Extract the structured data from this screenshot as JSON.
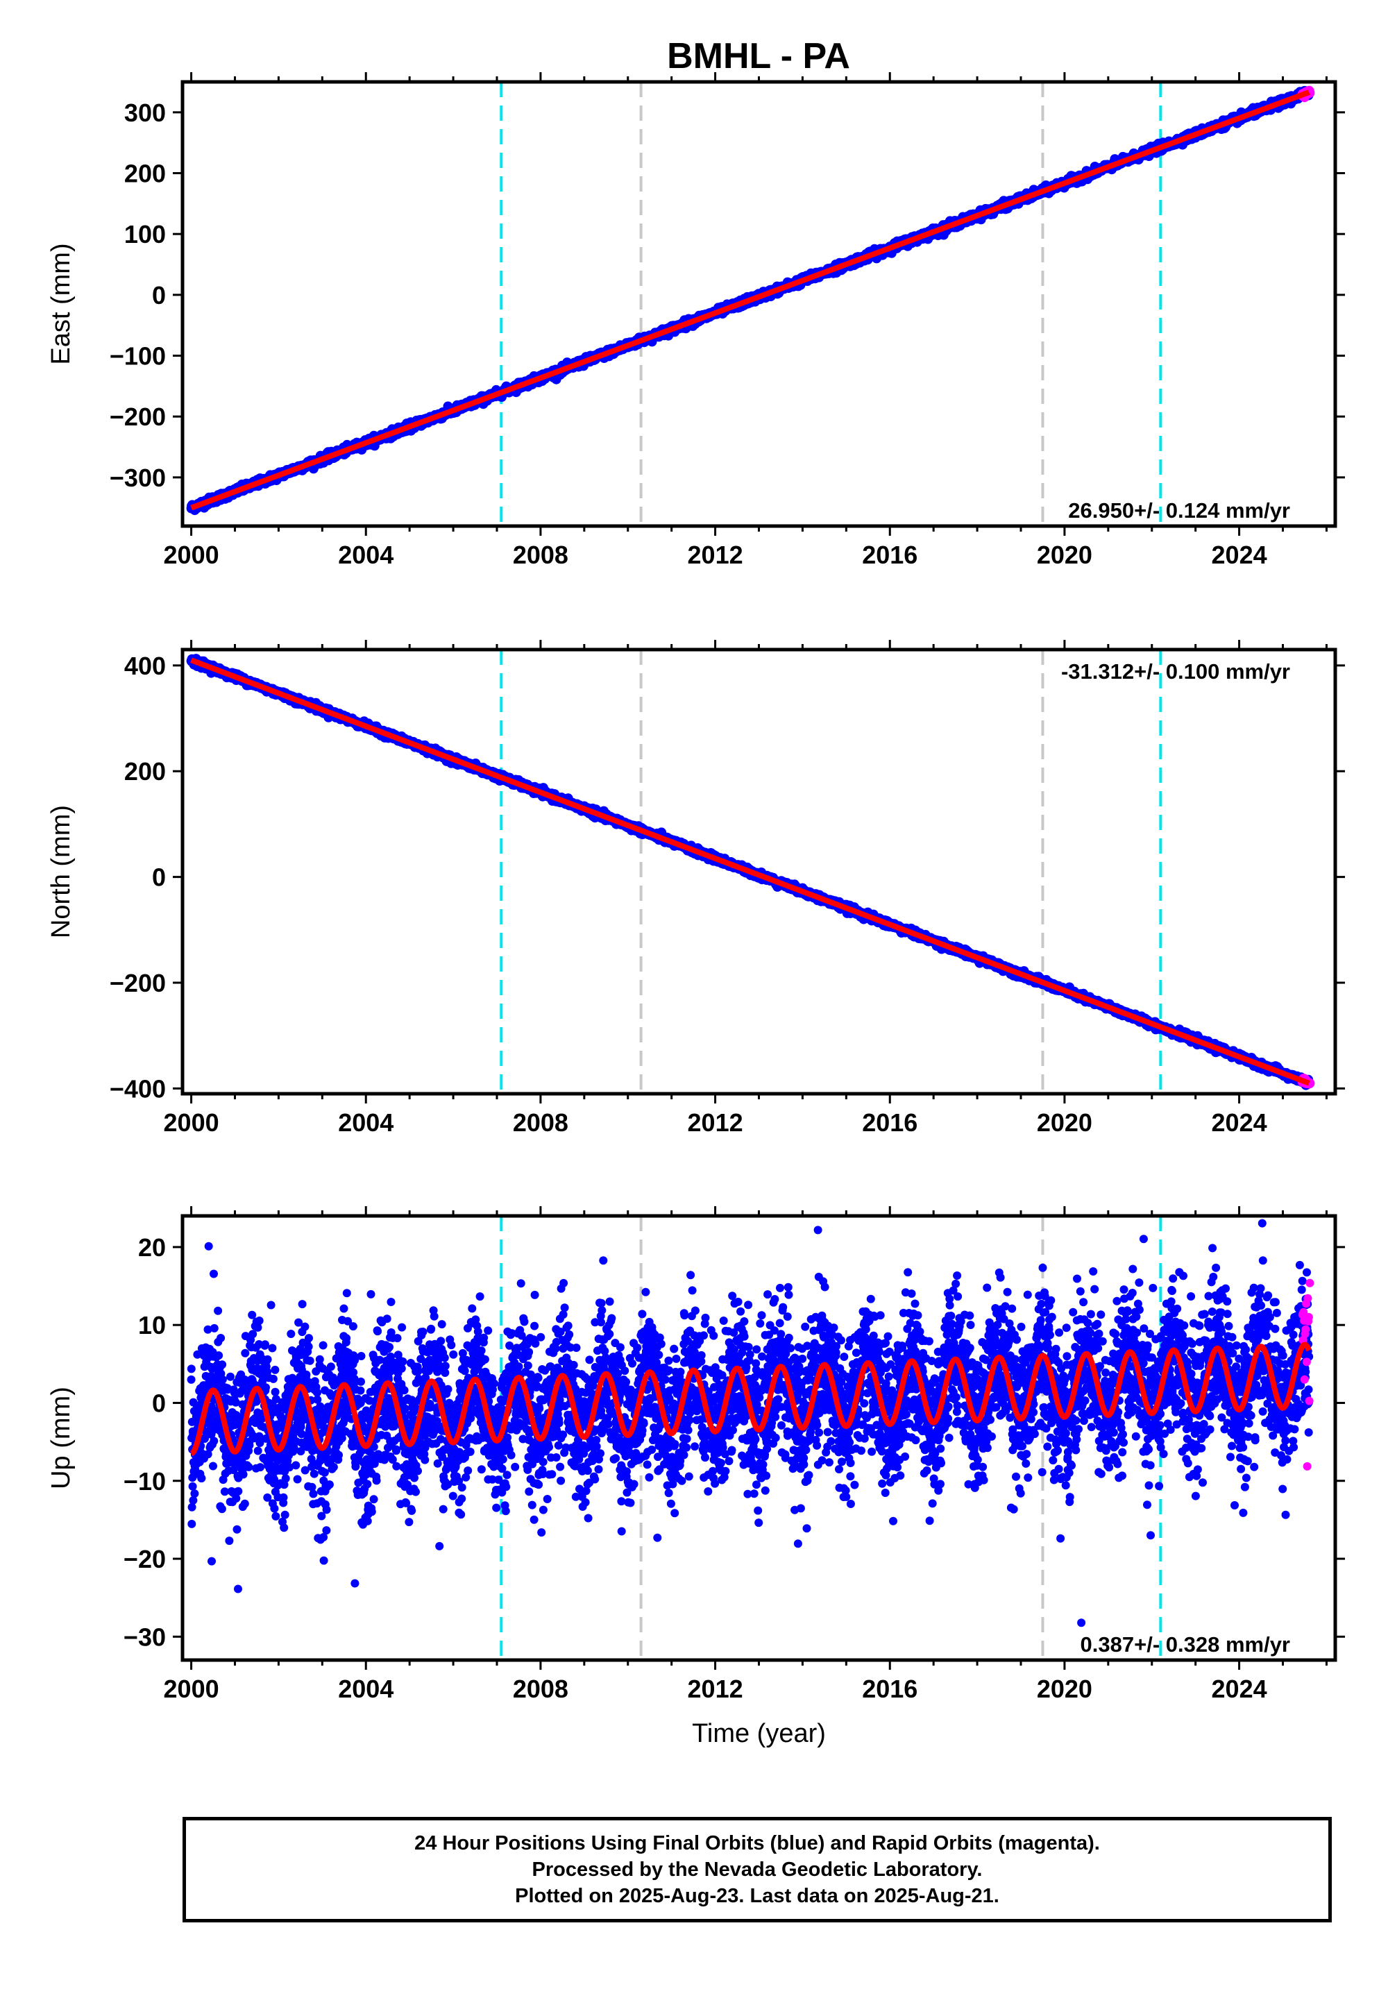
{
  "title": "BMHL - PA",
  "colors": {
    "final_orbits": "#0000ff",
    "rapid_orbits": "#ff00ff",
    "model": "#ff0000",
    "event_cyan": "#00e5ee",
    "event_gray": "#c8c8c8"
  },
  "event_lines": [
    {
      "year": 2007.1,
      "color": "cyan"
    },
    {
      "year": 2010.3,
      "color": "gray"
    },
    {
      "year": 2019.5,
      "color": "gray"
    },
    {
      "year": 2022.2,
      "color": "cyan"
    }
  ],
  "chart_data": [
    {
      "type": "scatter",
      "id": "east",
      "ylabel": "East (mm)",
      "xlabel": "",
      "xlim": [
        1999.8,
        2026.2
      ],
      "ylim": [
        -380,
        350
      ],
      "xticks": [
        2000,
        2004,
        2008,
        2012,
        2016,
        2020,
        2024
      ],
      "xtick_labels": [
        "2000",
        "2004",
        "2008",
        "2012",
        "2016",
        "2020",
        "2024"
      ],
      "yticks": [
        -300,
        -200,
        -100,
        0,
        100,
        200,
        300
      ],
      "ytick_labels": [
        "−300",
        "−200",
        "−100",
        "0",
        "100",
        "200",
        "300"
      ],
      "rate_text": "26.950+/- 0.124 mm/yr",
      "rate_position": "bottom-right",
      "trend": {
        "start_year": 2000.0,
        "start_value": -350,
        "end_year": 2025.6,
        "end_value": 333
      },
      "series": [
        {
          "name": "Final Orbits",
          "color": "blue",
          "x_range": [
            2000.0,
            2025.6
          ],
          "noise_mm": 3
        },
        {
          "name": "Rapid Orbits",
          "color": "magenta",
          "x_range": [
            2025.45,
            2025.62
          ],
          "noise_mm": 3
        }
      ]
    },
    {
      "type": "scatter",
      "id": "north",
      "ylabel": "North (mm)",
      "xlabel": "",
      "xlim": [
        1999.8,
        2026.2
      ],
      "ylim": [
        -410,
        430
      ],
      "xticks": [
        2000,
        2004,
        2008,
        2012,
        2016,
        2020,
        2024
      ],
      "xtick_labels": [
        "2000",
        "2004",
        "2008",
        "2012",
        "2016",
        "2020",
        "2024"
      ],
      "yticks": [
        -400,
        -200,
        0,
        200,
        400
      ],
      "ytick_labels": [
        "−400",
        "−200",
        "0",
        "200",
        "400"
      ],
      "rate_text": "-31.312+/- 0.100 mm/yr",
      "rate_position": "top-right",
      "trend": {
        "start_year": 2000.0,
        "start_value": 410,
        "end_year": 2025.6,
        "end_value": -390
      },
      "series": [
        {
          "name": "Final Orbits",
          "color": "blue",
          "x_range": [
            2000.0,
            2025.6
          ],
          "noise_mm": 3
        },
        {
          "name": "Rapid Orbits",
          "color": "magenta",
          "x_range": [
            2025.45,
            2025.62
          ],
          "noise_mm": 3
        }
      ]
    },
    {
      "type": "scatter",
      "id": "up",
      "ylabel": "Up (mm)",
      "xlabel": "Time (year)",
      "xlim": [
        1999.8,
        2026.2
      ],
      "ylim": [
        -33,
        24
      ],
      "xticks": [
        2000,
        2004,
        2008,
        2012,
        2016,
        2020,
        2024
      ],
      "xtick_labels": [
        "2000",
        "2004",
        "2008",
        "2012",
        "2016",
        "2020",
        "2024"
      ],
      "yticks": [
        -30,
        -20,
        -10,
        0,
        10,
        20
      ],
      "ytick_labels": [
        "−30",
        "−20",
        "−10",
        "0",
        "10",
        "20"
      ],
      "rate_text": "0.387+/- 0.328 mm/yr",
      "rate_position": "bottom-right",
      "trend": {
        "start_year": 2000.0,
        "start_value": -2.5,
        "end_year": 2025.6,
        "end_value": 3.5
      },
      "seasonal_amplitude": 4,
      "series": [
        {
          "name": "Final Orbits",
          "color": "blue",
          "x_range": [
            2000.0,
            2025.6
          ],
          "noise_mm": 4.5
        },
        {
          "name": "Rapid Orbits",
          "color": "magenta",
          "x_range": [
            2025.45,
            2025.62
          ],
          "noise_mm": 6
        }
      ]
    }
  ],
  "footer": {
    "line1": "24 Hour Positions Using Final Orbits (blue) and Rapid Orbits (magenta).",
    "line2": "Processed by the Nevada Geodetic Laboratory.",
    "line3": "Plotted on 2025-Aug-23. Last data on 2025-Aug-21."
  }
}
